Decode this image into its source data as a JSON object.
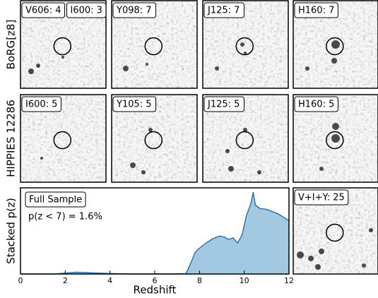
{
  "rows": [
    {
      "label": "BoRG[z8]",
      "panels": [
        [
          "V606: 4",
          "I600: 3"
        ],
        [
          "Y098: 7"
        ],
        [
          "J125: 7"
        ],
        [
          "H160: 7"
        ]
      ]
    },
    {
      "label": "HIPPIES 12286",
      "panels": [
        [
          "I600: 5"
        ],
        [
          "Y105: 5"
        ],
        [
          "J125: 5"
        ],
        [
          "H160: 5"
        ]
      ]
    }
  ],
  "stack_panel": {
    "label": "V+I+Y: 25"
  },
  "chart_data": {
    "type": "area",
    "xlabel": "Redshift",
    "ylabel": "Stacked p(z)",
    "legend": "Full Sample",
    "annotation": "p(z < 7) = 1.6%",
    "x": [
      0,
      1.5,
      2,
      2.5,
      3,
      3.5,
      4,
      5,
      6,
      7,
      7.4,
      7.6,
      7.8,
      8,
      8.3,
      8.6,
      8.9,
      9.1,
      9.3,
      9.5,
      9.7,
      9.9,
      10.1,
      10.3,
      10.4,
      10.5,
      10.7,
      11,
      11.5,
      12
    ],
    "values": [
      0,
      0,
      0.01,
      0.02,
      0.015,
      0.01,
      0.005,
      0,
      0,
      0,
      0.005,
      0.12,
      0.25,
      0.3,
      0.36,
      0.41,
      0.44,
      0.43,
      0.4,
      0.42,
      0.36,
      0.45,
      0.68,
      0.82,
      0.95,
      0.8,
      0.76,
      0.75,
      0.7,
      0.62
    ],
    "xlim": [
      0,
      12
    ],
    "ylim": [
      0,
      1
    ],
    "xticks": [
      0,
      2,
      4,
      6,
      8,
      10,
      12
    ],
    "color": "#a3c9e2",
    "line_color": "#2b76b0"
  }
}
